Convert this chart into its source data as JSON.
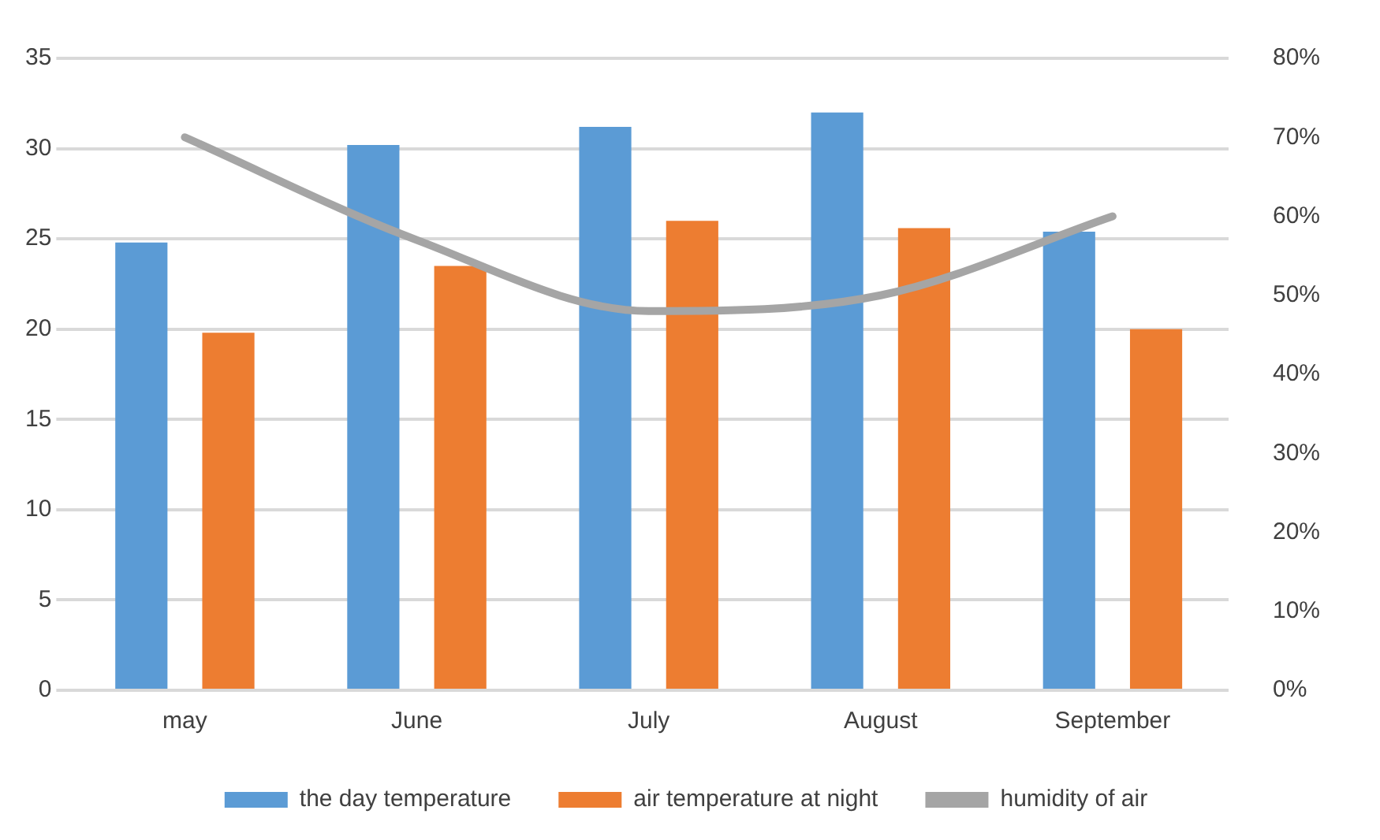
{
  "chart_data": {
    "type": "bar",
    "categories": [
      "may",
      "June",
      "July",
      "August",
      "September"
    ],
    "series": [
      {
        "name": "the day temperature",
        "color": "#5b9bd5",
        "values": [
          24.8,
          30.2,
          31.2,
          32.0,
          25.4
        ]
      },
      {
        "name": "air temperature at night",
        "color": "#ed7d31",
        "values": [
          19.8,
          23.5,
          26.0,
          25.6,
          20.0
        ]
      },
      {
        "name": "humidity of air",
        "color": "#a5a5a5",
        "type": "line",
        "axis": "y2",
        "values": [
          70,
          57,
          48,
          50,
          60
        ]
      }
    ],
    "ylim": [
      0,
      35
    ],
    "yticks": [
      0,
      5,
      10,
      15,
      20,
      25,
      30,
      35
    ],
    "y2lim": [
      0,
      80
    ],
    "y2ticks": [
      {
        "value": 0,
        "label": "0%"
      },
      {
        "value": 10,
        "label": "10%"
      },
      {
        "value": 20,
        "label": "20%"
      },
      {
        "value": 30,
        "label": "30%"
      },
      {
        "value": 40,
        "label": "40%"
      },
      {
        "value": 50,
        "label": "50%"
      },
      {
        "value": 60,
        "label": "60%"
      },
      {
        "value": 70,
        "label": "70%"
      },
      {
        "value": 80,
        "label": "80%"
      }
    ],
    "grid": "y",
    "legend": "bottom",
    "marker": "none"
  }
}
